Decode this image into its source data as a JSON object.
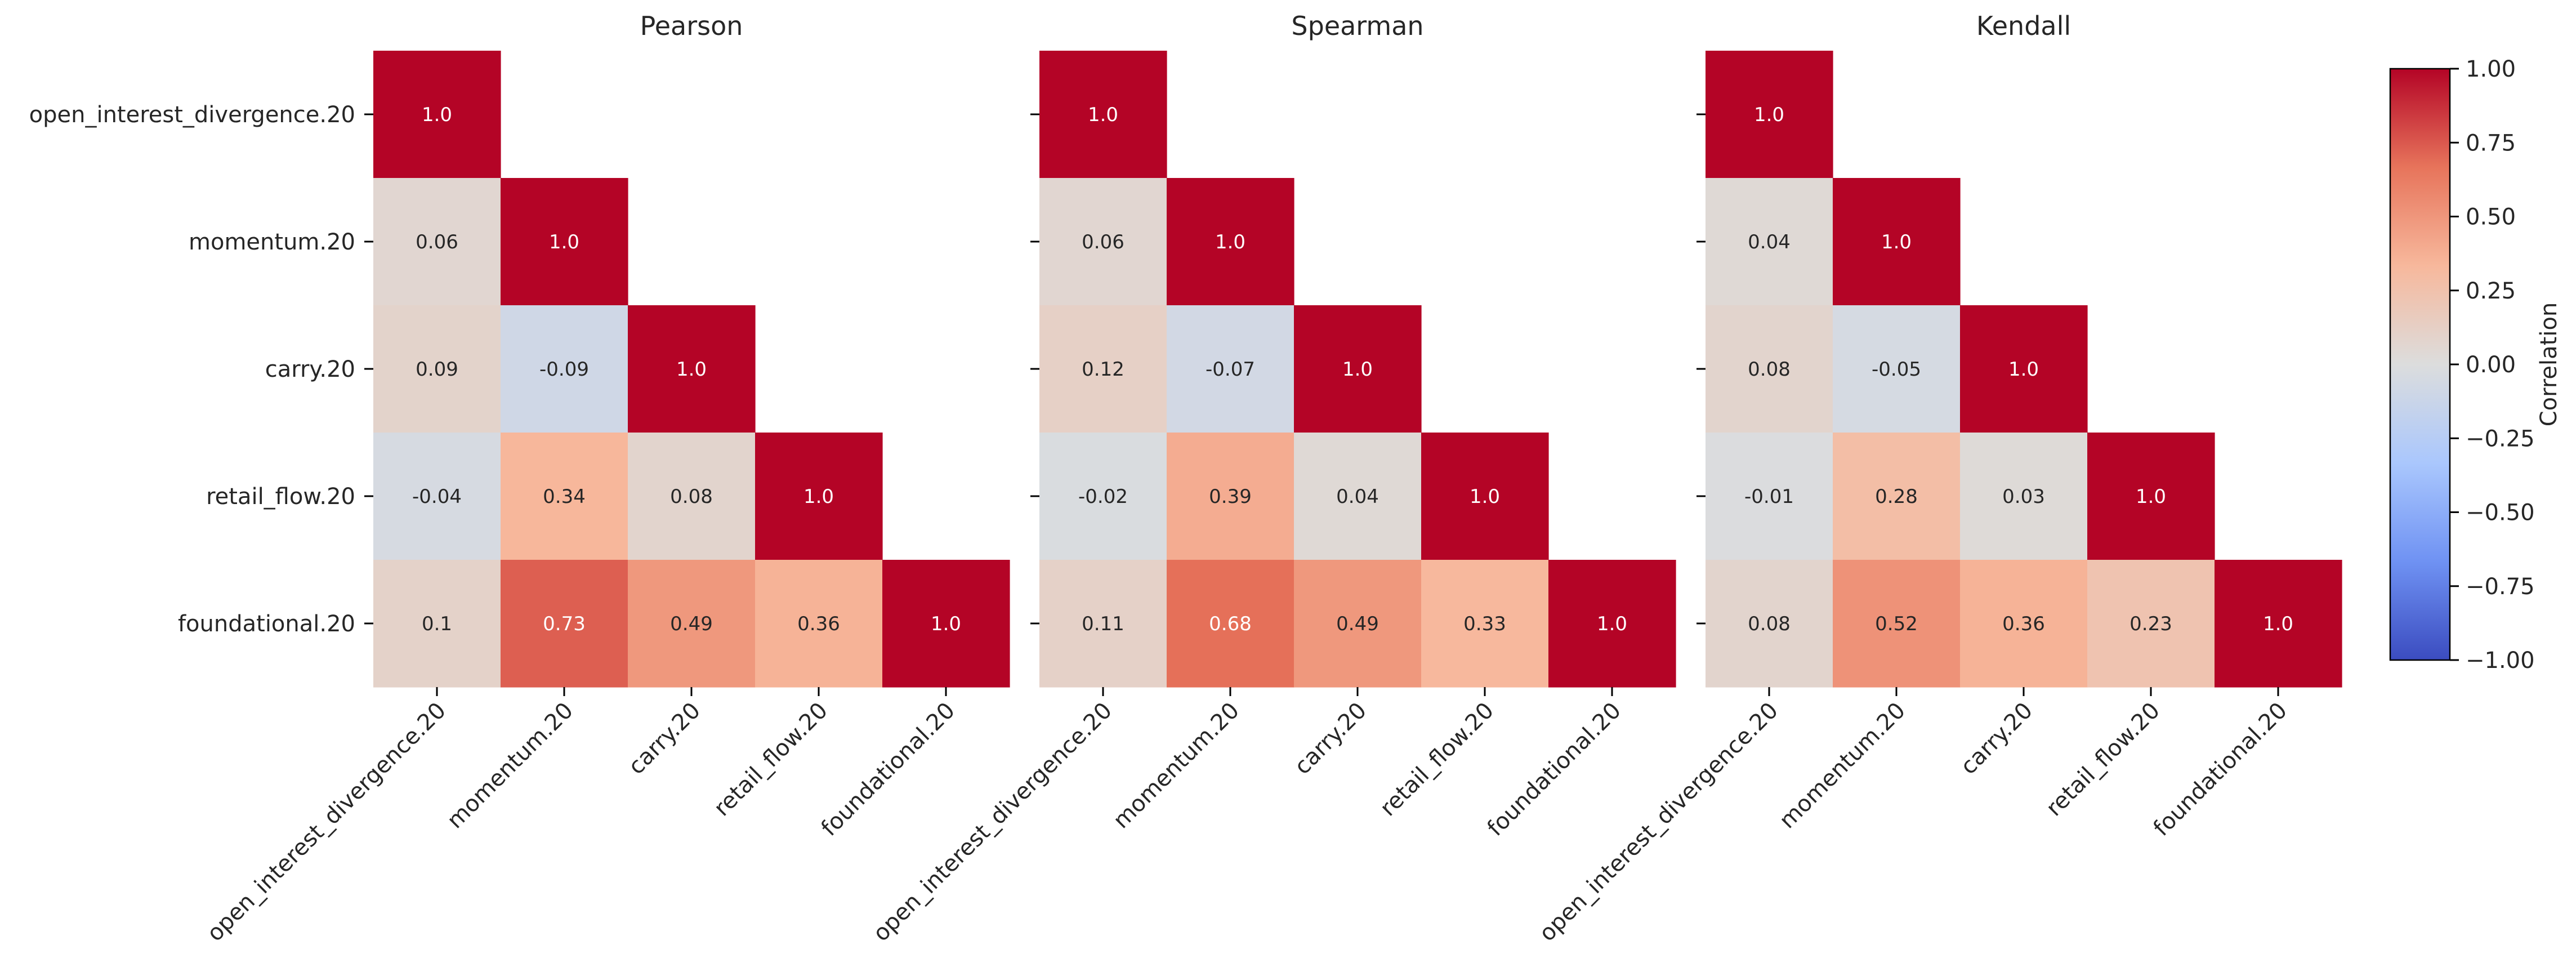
{
  "chart_data": [
    {
      "type": "heatmap",
      "title": "Pearson",
      "row_labels": [
        "open_interest_divergence.20",
        "momentum.20",
        "carry.20",
        "retail_flow.20",
        "foundational.20"
      ],
      "col_labels": [
        "open_interest_divergence.20",
        "momentum.20",
        "carry.20",
        "retail_flow.20",
        "foundational.20"
      ],
      "values": [
        [
          1.0,
          null,
          null,
          null,
          null
        ],
        [
          0.06,
          1.0,
          null,
          null,
          null
        ],
        [
          0.09,
          -0.09,
          1.0,
          null,
          null
        ],
        [
          -0.04,
          0.34,
          0.08,
          1.0,
          null
        ],
        [
          0.1,
          0.73,
          0.49,
          0.36,
          1.0
        ]
      ],
      "labels": [
        [
          "1.0",
          "",
          "",
          "",
          ""
        ],
        [
          "0.06",
          "1.0",
          "",
          "",
          ""
        ],
        [
          "0.09",
          "-0.09",
          "1.0",
          "",
          ""
        ],
        [
          "-0.04",
          "0.34",
          "0.08",
          "1.0",
          ""
        ],
        [
          "0.1",
          "0.73",
          "0.49",
          "0.36",
          "1.0"
        ]
      ]
    },
    {
      "type": "heatmap",
      "title": "Spearman",
      "row_labels": [
        "open_interest_divergence.20",
        "momentum.20",
        "carry.20",
        "retail_flow.20",
        "foundational.20"
      ],
      "col_labels": [
        "open_interest_divergence.20",
        "momentum.20",
        "carry.20",
        "retail_flow.20",
        "foundational.20"
      ],
      "values": [
        [
          1.0,
          null,
          null,
          null,
          null
        ],
        [
          0.06,
          1.0,
          null,
          null,
          null
        ],
        [
          0.12,
          -0.07,
          1.0,
          null,
          null
        ],
        [
          -0.02,
          0.39,
          0.04,
          1.0,
          null
        ],
        [
          0.11,
          0.68,
          0.49,
          0.33,
          1.0
        ]
      ],
      "labels": [
        [
          "1.0",
          "",
          "",
          "",
          ""
        ],
        [
          "0.06",
          "1.0",
          "",
          "",
          ""
        ],
        [
          "0.12",
          "-0.07",
          "1.0",
          "",
          ""
        ],
        [
          "-0.02",
          "0.39",
          "0.04",
          "1.0",
          ""
        ],
        [
          "0.11",
          "0.68",
          "0.49",
          "0.33",
          "1.0"
        ]
      ]
    },
    {
      "type": "heatmap",
      "title": "Kendall",
      "row_labels": [
        "open_interest_divergence.20",
        "momentum.20",
        "carry.20",
        "retail_flow.20",
        "foundational.20"
      ],
      "col_labels": [
        "open_interest_divergence.20",
        "momentum.20",
        "carry.20",
        "retail_flow.20",
        "foundational.20"
      ],
      "values": [
        [
          1.0,
          null,
          null,
          null,
          null
        ],
        [
          0.04,
          1.0,
          null,
          null,
          null
        ],
        [
          0.08,
          -0.05,
          1.0,
          null,
          null
        ],
        [
          -0.01,
          0.28,
          0.03,
          1.0,
          null
        ],
        [
          0.08,
          0.52,
          0.36,
          0.23,
          1.0
        ]
      ],
      "labels": [
        [
          "1.0",
          "",
          "",
          "",
          ""
        ],
        [
          "0.04",
          "1.0",
          "",
          "",
          ""
        ],
        [
          "0.08",
          "-0.05",
          "1.0",
          "",
          ""
        ],
        [
          "-0.01",
          "0.28",
          "0.03",
          "1.0",
          ""
        ],
        [
          "0.08",
          "0.52",
          "0.36",
          "0.23",
          "1.0"
        ]
      ]
    }
  ],
  "colorbar": {
    "label": "Correlation",
    "colormap": "coolwarm",
    "range": [
      -1.0,
      1.0
    ],
    "ticks": [
      1.0,
      0.75,
      0.5,
      0.25,
      0.0,
      -0.25,
      -0.5,
      -0.75,
      -1.0
    ],
    "tick_labels": [
      "1.00",
      "0.75",
      "0.50",
      "0.25",
      "0.00",
      "−0.25",
      "−0.50",
      "−0.75",
      "−1.00"
    ]
  },
  "colors": {
    "text_dark": "#262626",
    "text_light": "#ffffff",
    "axis": "#000000",
    "colormap_stops": [
      "#3b4cc0",
      "#6f92f3",
      "#aac7fd",
      "#dcdddd",
      "#f7b89c",
      "#e7745b",
      "#b40426"
    ]
  }
}
